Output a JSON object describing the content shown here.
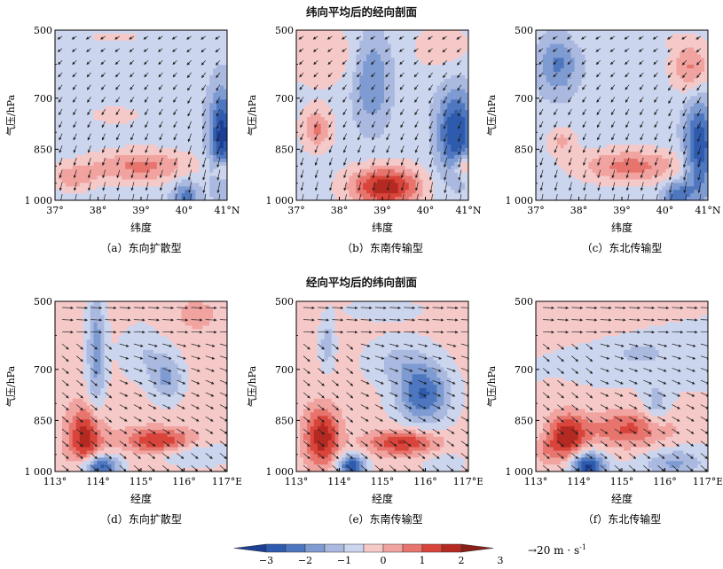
{
  "titles": {
    "top": "纬向平均后的经向剖面",
    "bottom": "经向平均后的纬向剖面"
  },
  "colorbar": {
    "ticks": [
      "−3",
      "−2",
      "−1",
      "0",
      "1",
      "2",
      "3"
    ],
    "colors": [
      "#1c3f95",
      "#2f5bae",
      "#4e77c0",
      "#7e9bd2",
      "#aab9e0",
      "#ccd5ee",
      "#f6c9c9",
      "#f1a3a0",
      "#e7746d",
      "#d9443b",
      "#b42a22",
      "#8a1f18"
    ],
    "reference_vector": "→20 m · s",
    "reference_vector_exp": "-1"
  },
  "chart_data": [
    {
      "type": "heatmap",
      "panel_label": "（a）东向扩散型",
      "xlabel": "纬度",
      "ylabel": "气压/hPa",
      "x_ticks": [
        "37°",
        "38°",
        "39°",
        "40°",
        "41°N"
      ],
      "y_ticks": [
        "500",
        "700",
        "850",
        "1 000"
      ],
      "x_range": [
        37,
        41
      ],
      "y_range": [
        500,
        1000
      ],
      "pattern": "a"
    },
    {
      "type": "heatmap",
      "panel_label": "（b）东南传输型",
      "xlabel": "纬度",
      "ylabel": "气压/hPa",
      "x_ticks": [
        "37°",
        "38°",
        "39°",
        "40°",
        "41°N"
      ],
      "y_ticks": [
        "500",
        "700",
        "850",
        "1 000"
      ],
      "x_range": [
        37,
        41
      ],
      "y_range": [
        500,
        1000
      ],
      "pattern": "b"
    },
    {
      "type": "heatmap",
      "panel_label": "（c）东北传输型",
      "xlabel": "纬度",
      "ylabel": "气压/hPa",
      "x_ticks": [
        "37°",
        "38°",
        "39°",
        "40°",
        "41°N"
      ],
      "y_ticks": [
        "500",
        "700",
        "850",
        "1 000"
      ],
      "x_range": [
        37,
        41
      ],
      "y_range": [
        500,
        1000
      ],
      "pattern": "c"
    },
    {
      "type": "heatmap",
      "panel_label": "（d）东向扩散型",
      "xlabel": "经度",
      "ylabel": "气压/hPa",
      "x_ticks": [
        "113°",
        "114°",
        "115°",
        "116°",
        "117°E"
      ],
      "y_ticks": [
        "500",
        "700",
        "850",
        "1 000"
      ],
      "x_range": [
        113,
        117
      ],
      "y_range": [
        500,
        1000
      ],
      "pattern": "d"
    },
    {
      "type": "heatmap",
      "panel_label": "（e）东南传输型",
      "xlabel": "经度",
      "ylabel": "气压/hPa",
      "x_ticks": [
        "113°",
        "114°",
        "115°",
        "116°",
        "117°E"
      ],
      "y_ticks": [
        "500",
        "700",
        "850",
        "1 000"
      ],
      "x_range": [
        113,
        117
      ],
      "y_range": [
        500,
        1000
      ],
      "pattern": "e"
    },
    {
      "type": "heatmap",
      "panel_label": "（f）东北传输型",
      "xlabel": "经度",
      "ylabel": "气压/hPa",
      "x_ticks": [
        "113°",
        "114°",
        "115°",
        "116°",
        "117°E"
      ],
      "y_ticks": [
        "500",
        "700",
        "850",
        "1 000"
      ],
      "x_range": [
        113,
        117
      ],
      "y_range": [
        500,
        1000
      ],
      "pattern": "f"
    }
  ]
}
